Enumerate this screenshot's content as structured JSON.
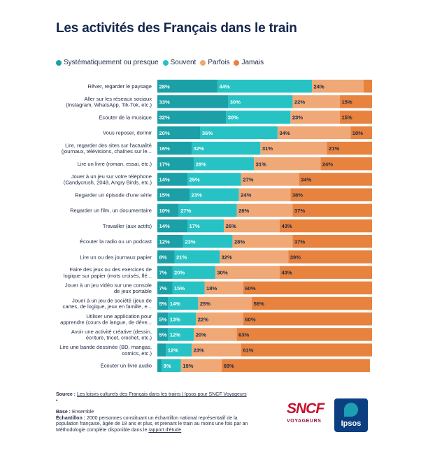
{
  "title": "Les activités des Français dans le train",
  "colors": {
    "systematique": "#1aa0a6",
    "souvent": "#27c2c4",
    "parfois": "#efa876",
    "jamais": "#e7823f"
  },
  "chart_data": {
    "type": "bar",
    "orientation": "horizontal",
    "stacked": true,
    "xlim": [
      0,
      100
    ],
    "legend_position": "top",
    "series": [
      {
        "name": "Systématiquement ou presque",
        "values": [
          28,
          33,
          32,
          20,
          16,
          17,
          14,
          15,
          10,
          14,
          12,
          8,
          7,
          7,
          5,
          5,
          5,
          4,
          2
        ]
      },
      {
        "name": "Souvent",
        "values": [
          44,
          30,
          30,
          36,
          32,
          28,
          25,
          23,
          27,
          17,
          23,
          21,
          20,
          15,
          14,
          13,
          12,
          12,
          9
        ]
      },
      {
        "name": "Parfois",
        "values": [
          24,
          22,
          23,
          34,
          31,
          31,
          27,
          24,
          26,
          26,
          28,
          32,
          30,
          18,
          25,
          22,
          20,
          23,
          19
        ]
      },
      {
        "name": "Jamais",
        "values": [
          4,
          15,
          15,
          10,
          21,
          24,
          34,
          38,
          37,
          43,
          37,
          39,
          43,
          60,
          56,
          60,
          63,
          61,
          69
        ]
      }
    ],
    "labels_shown": [
      [
        "28%",
        "44%",
        "24%",
        ""
      ],
      [
        "33%",
        "30%",
        "22%",
        "15%"
      ],
      [
        "32%",
        "30%",
        "23%",
        "15%"
      ],
      [
        "20%",
        "36%",
        "34%",
        "10%"
      ],
      [
        "16%",
        "32%",
        "31%",
        "21%"
      ],
      [
        "17%",
        "28%",
        "31%",
        "24%"
      ],
      [
        "14%",
        "25%",
        "27%",
        "34%"
      ],
      [
        "15%",
        "23%",
        "24%",
        "38%"
      ],
      [
        "10%",
        "27%",
        "26%",
        "37%"
      ],
      [
        "14%",
        "17%",
        "26%",
        "43%"
      ],
      [
        "12%",
        "23%",
        "28%",
        "37%"
      ],
      [
        "8%",
        "21%",
        "32%",
        "39%"
      ],
      [
        "7%",
        "20%",
        "30%",
        "43%"
      ],
      [
        "7%",
        "15%",
        "18%",
        "60%"
      ],
      [
        "5%",
        "14%",
        "25%",
        "56%"
      ],
      [
        "5%",
        "13%",
        "22%",
        "60%"
      ],
      [
        "5%",
        "12%",
        "20%",
        "63%"
      ],
      [
        "",
        "12%",
        "23%",
        "61%"
      ],
      [
        "",
        "9%",
        "19%",
        "69%"
      ]
    ],
    "categories": [
      [
        "Rêver, regarder le paysage"
      ],
      [
        "Aller sur les réseaux sociaux",
        "(Instagram, WhatsApp, Tik-Tok, etc.)"
      ],
      [
        "Ecouter de la musique"
      ],
      [
        "Vous reposer, dormir"
      ],
      [
        "Lire, regarder des sites sur l'actualité",
        "(journaux, télévisions, chaînes sur le..."
      ],
      [
        "Lire un livre (roman, essai, etc.)"
      ],
      [
        "Jouer à un jeu sur votre téléphone",
        "(Candycrush, 2048, Angry Birds, etc.)"
      ],
      [
        "Regarder un épisode d'une série"
      ],
      [
        "Regarder un film, un documentaire"
      ],
      [
        "Travailler (aux actifs)"
      ],
      [
        "Écouter la radio ou un podcast"
      ],
      [
        "Lire un ou des journaux papier"
      ],
      [
        "Faire des jeux ou des exercices de",
        "logique sur papier (mots croisés, flé..."
      ],
      [
        "Jouer à un jeu vidéo sur une console",
        "de jeux portable"
      ],
      [
        "Jouer à un jeu de société (jeux de",
        "cartes, de logique, jeux en famille, e..."
      ],
      [
        "Utiliser une application pour",
        "apprendre (cours de langue, de déve..."
      ],
      [
        "Avoir une activité créative (dessin,",
        "écriture, tricot, crochet, etc.)"
      ],
      [
        "Lire une bande dessinée (BD, mangas,",
        "comics, etc.)"
      ],
      [
        "Écouter un livre audio"
      ]
    ]
  },
  "footer": {
    "source_label": "Source :",
    "source_link": "Les loisirs culturels des Français dans les trains | Ipsos pour SNCF Voyageurs",
    "bullet": "•",
    "base_label": "Base :",
    "base_value": "Ensemble",
    "echantillon_label": "Échantillon :",
    "echantillon_value": "2000 personnes constituant un échantillon national représentatif de la population française, âgée de 18 ans et plus, et prenant le train au moins une fois par an",
    "methodo_text": "Méthodologie complète disponible dans le",
    "methodo_link": "rapport d'étude"
  },
  "logos": {
    "sncf_text": "SNCF",
    "sncf_sub": "VOYAGEURS",
    "ipsos_text": "Ipsos"
  }
}
